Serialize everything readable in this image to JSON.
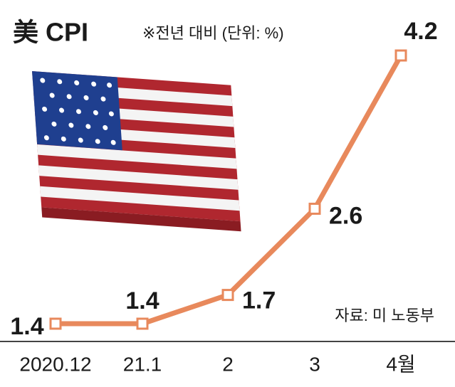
{
  "chart_data": {
    "type": "line",
    "title": "美 CPI",
    "subtitle": "※전년 대비 (단위: %)",
    "source": "자료: 미 노동부",
    "categories": [
      "2020.12",
      "21.1",
      "2",
      "3",
      "4월"
    ],
    "values": [
      1.4,
      1.4,
      1.7,
      2.6,
      4.2
    ],
    "color": "#e8895c"
  }
}
